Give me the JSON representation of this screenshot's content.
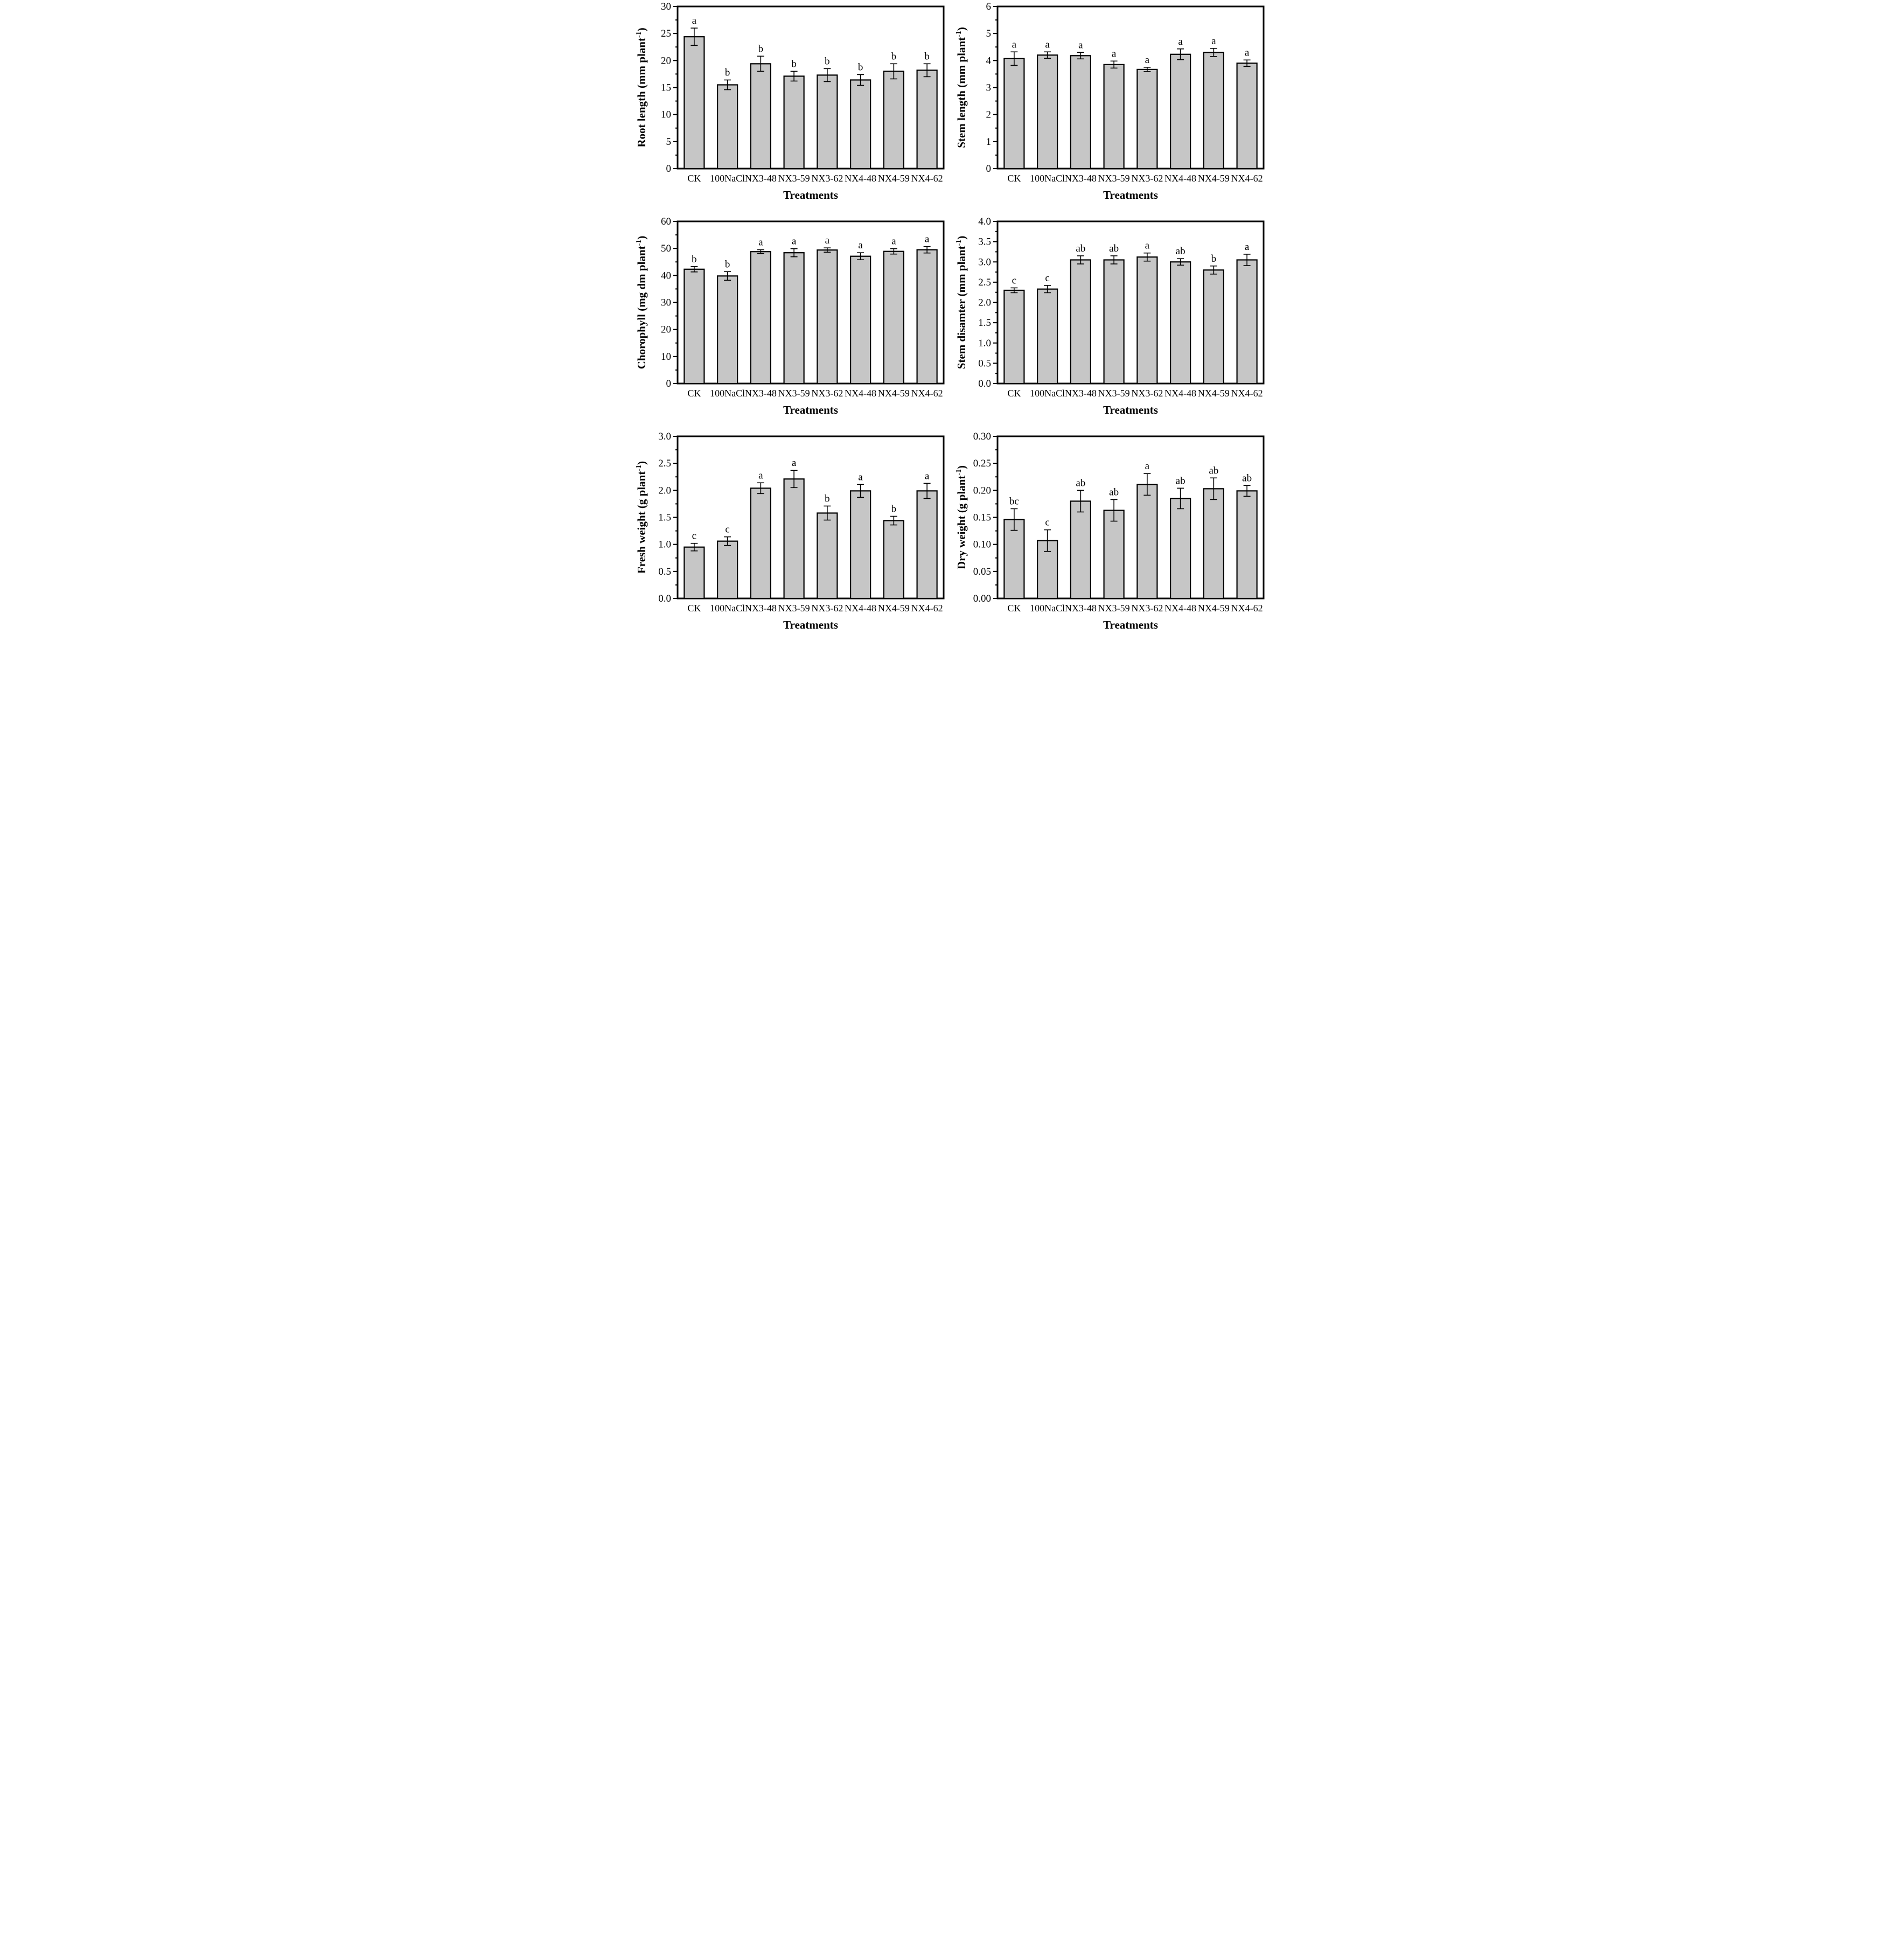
{
  "figure": {
    "xlabel": "Treatments",
    "categories": [
      "CK",
      "100NaCl",
      "NX3-48",
      "NX3-59",
      "NX3-62",
      "NX4-48",
      "NX4-59",
      "NX4-62"
    ],
    "bar_fill": "#c6c6c6",
    "axis_color": "#000000"
  },
  "chart_data": [
    {
      "id": "root-length",
      "type": "bar",
      "ylabel": "Root length (mm plant-1)",
      "xlabel": "Treatments",
      "categories": [
        "CK",
        "100NaCl",
        "NX3-48",
        "NX3-59",
        "NX3-62",
        "NX4-48",
        "NX4-59",
        "NX4-62"
      ],
      "values": [
        24.4,
        15.5,
        19.4,
        17.1,
        17.3,
        16.4,
        18.0,
        18.2
      ],
      "errors": [
        1.6,
        0.9,
        1.4,
        0.9,
        1.2,
        1.0,
        1.4,
        1.2
      ],
      "letters": [
        "a",
        "b",
        "b",
        "b",
        "b",
        "b",
        "b",
        "b"
      ],
      "ylim": [
        0,
        30
      ],
      "ytick_step": 5,
      "minor_step": 2.5,
      "tick_decimals": 0,
      "grid": false,
      "legend": "none"
    },
    {
      "id": "stem-length",
      "type": "bar",
      "ylabel": "Stem length (mm plant-1)",
      "xlabel": "Treatments",
      "categories": [
        "CK",
        "100NaCl",
        "NX3-48",
        "NX3-59",
        "NX3-62",
        "NX4-48",
        "NX4-59",
        "NX4-62"
      ],
      "values": [
        4.07,
        4.2,
        4.18,
        3.85,
        3.67,
        4.23,
        4.3,
        3.9
      ],
      "errors": [
        0.25,
        0.12,
        0.12,
        0.13,
        0.08,
        0.2,
        0.15,
        0.12
      ],
      "letters": [
        "a",
        "a",
        "a",
        "a",
        "a",
        "a",
        "a",
        "a"
      ],
      "ylim": [
        0,
        6
      ],
      "ytick_step": 1,
      "minor_step": 0.5,
      "tick_decimals": 0,
      "grid": false,
      "legend": "none"
    },
    {
      "id": "chorophyll",
      "type": "bar",
      "ylabel": "Chorophyll (mg dm plant-1)",
      "xlabel": "Treatments",
      "categories": [
        "CK",
        "100NaCl",
        "NX3-48",
        "NX3-59",
        "NX3-62",
        "NX4-48",
        "NX4-59",
        "NX4-62"
      ],
      "values": [
        42.3,
        39.8,
        48.8,
        48.4,
        49.4,
        47.1,
        48.9,
        49.5
      ],
      "errors": [
        1.0,
        1.6,
        0.7,
        1.5,
        0.8,
        1.3,
        1.0,
        1.2
      ],
      "letters": [
        "b",
        "b",
        "a",
        "a",
        "a",
        "a",
        "a",
        "a"
      ],
      "ylim": [
        0,
        60
      ],
      "ytick_step": 10,
      "minor_step": 5,
      "tick_decimals": 0,
      "grid": false,
      "legend": "none"
    },
    {
      "id": "stem-diameter",
      "type": "bar",
      "ylabel": "Stem disamter (mm plant-1)",
      "xlabel": "Treatments",
      "categories": [
        "CK",
        "100NaCl",
        "NX3-48",
        "NX3-59",
        "NX3-62",
        "NX4-48",
        "NX4-59",
        "NX4-62"
      ],
      "values": [
        2.3,
        2.33,
        3.05,
        3.05,
        3.12,
        3.0,
        2.8,
        3.05
      ],
      "errors": [
        0.06,
        0.09,
        0.1,
        0.1,
        0.1,
        0.08,
        0.1,
        0.14
      ],
      "letters": [
        "c",
        "c",
        "ab",
        "ab",
        "a",
        "ab",
        "b",
        "a"
      ],
      "ylim": [
        0,
        4.0
      ],
      "ytick_step": 0.5,
      "minor_step": 0.25,
      "tick_decimals": 1,
      "grid": false,
      "legend": "none"
    },
    {
      "id": "fresh-weight",
      "type": "bar",
      "ylabel": "Fresh weight (g plant-1)",
      "xlabel": "Treatments",
      "categories": [
        "CK",
        "100NaCl",
        "NX3-48",
        "NX3-59",
        "NX3-62",
        "NX4-48",
        "NX4-59",
        "NX4-62"
      ],
      "values": [
        0.95,
        1.06,
        2.04,
        2.21,
        1.58,
        1.99,
        1.44,
        1.99
      ],
      "errors": [
        0.07,
        0.08,
        0.1,
        0.16,
        0.13,
        0.12,
        0.08,
        0.14
      ],
      "letters": [
        "c",
        "c",
        "a",
        "a",
        "b",
        "a",
        "b",
        "a"
      ],
      "ylim": [
        0,
        3.0
      ],
      "ytick_step": 0.5,
      "minor_step": 0.25,
      "tick_decimals": 1,
      "grid": false,
      "legend": "none"
    },
    {
      "id": "dry-weight",
      "type": "bar",
      "ylabel": "Dry weight (g plant-1)",
      "xlabel": "Treatments",
      "categories": [
        "CK",
        "100NaCl",
        "NX3-48",
        "NX3-59",
        "NX3-62",
        "NX4-48",
        "NX4-59",
        "NX4-62"
      ],
      "values": [
        0.146,
        0.107,
        0.18,
        0.163,
        0.211,
        0.185,
        0.203,
        0.199
      ],
      "errors": [
        0.02,
        0.02,
        0.02,
        0.02,
        0.02,
        0.019,
        0.02,
        0.01
      ],
      "letters": [
        "bc",
        "c",
        "ab",
        "ab",
        "a",
        "ab",
        "ab",
        "ab"
      ],
      "ylim": [
        0,
        0.3
      ],
      "ytick_step": 0.05,
      "minor_step": 0.025,
      "tick_decimals": 2,
      "grid": false,
      "legend": "none"
    }
  ]
}
